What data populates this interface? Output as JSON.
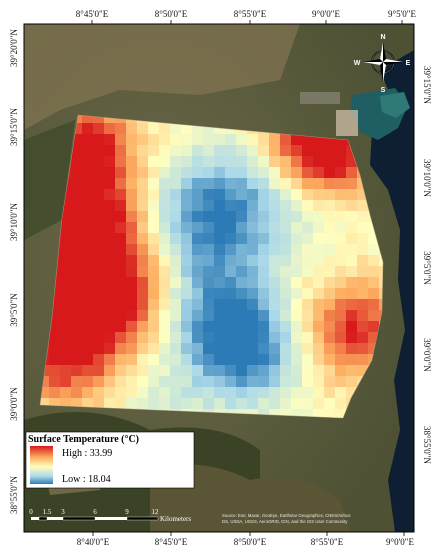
{
  "map": {
    "legend": {
      "title": "Surface Temperature (°C)",
      "high_label": "High : 33.99",
      "low_label": "Low : 18.04",
      "high_value": 33.99,
      "low_value": 18.04,
      "colors": [
        "#d7191c",
        "#fdae61",
        "#ffffbf",
        "#abd9e9",
        "#2c7bb6"
      ]
    },
    "top_ticks": [
      "8°45'0\"E",
      "8°50'0\"E",
      "8°55'0\"E",
      "9°0'0\"E",
      "9°5'0\"E"
    ],
    "bottom_ticks": [
      "8°40'0\"E",
      "8°45'0\"E",
      "8°50'0\"E",
      "8°55'0\"E",
      "9°0'0\"E"
    ],
    "left_ticks": [
      "39°20'0\"N",
      "39°15'0\"N",
      "39°10'0\"N",
      "39°5'0\"N",
      "39°0'0\"N",
      "38°55'0\"N"
    ],
    "right_ticks": [
      "39°15'0\"N",
      "39°10'0\"N",
      "39°5'0\"N",
      "39°0'0\"N",
      "38°55'0\"N"
    ],
    "scale_bar": {
      "labels": [
        "0",
        "1.5",
        "3",
        "6",
        "9",
        "12"
      ],
      "unit": "Kilometers"
    },
    "north_arrow": {
      "n": "N",
      "s": "S",
      "e": "E",
      "w": "W"
    },
    "credits": [
      "Source: Esri, Maxar, GeoEye, Earthstar Geographics, CNES/Airbus",
      "DS, USDA, USGS, AeroGRID, IGN, and the GIS User Community"
    ]
  }
}
